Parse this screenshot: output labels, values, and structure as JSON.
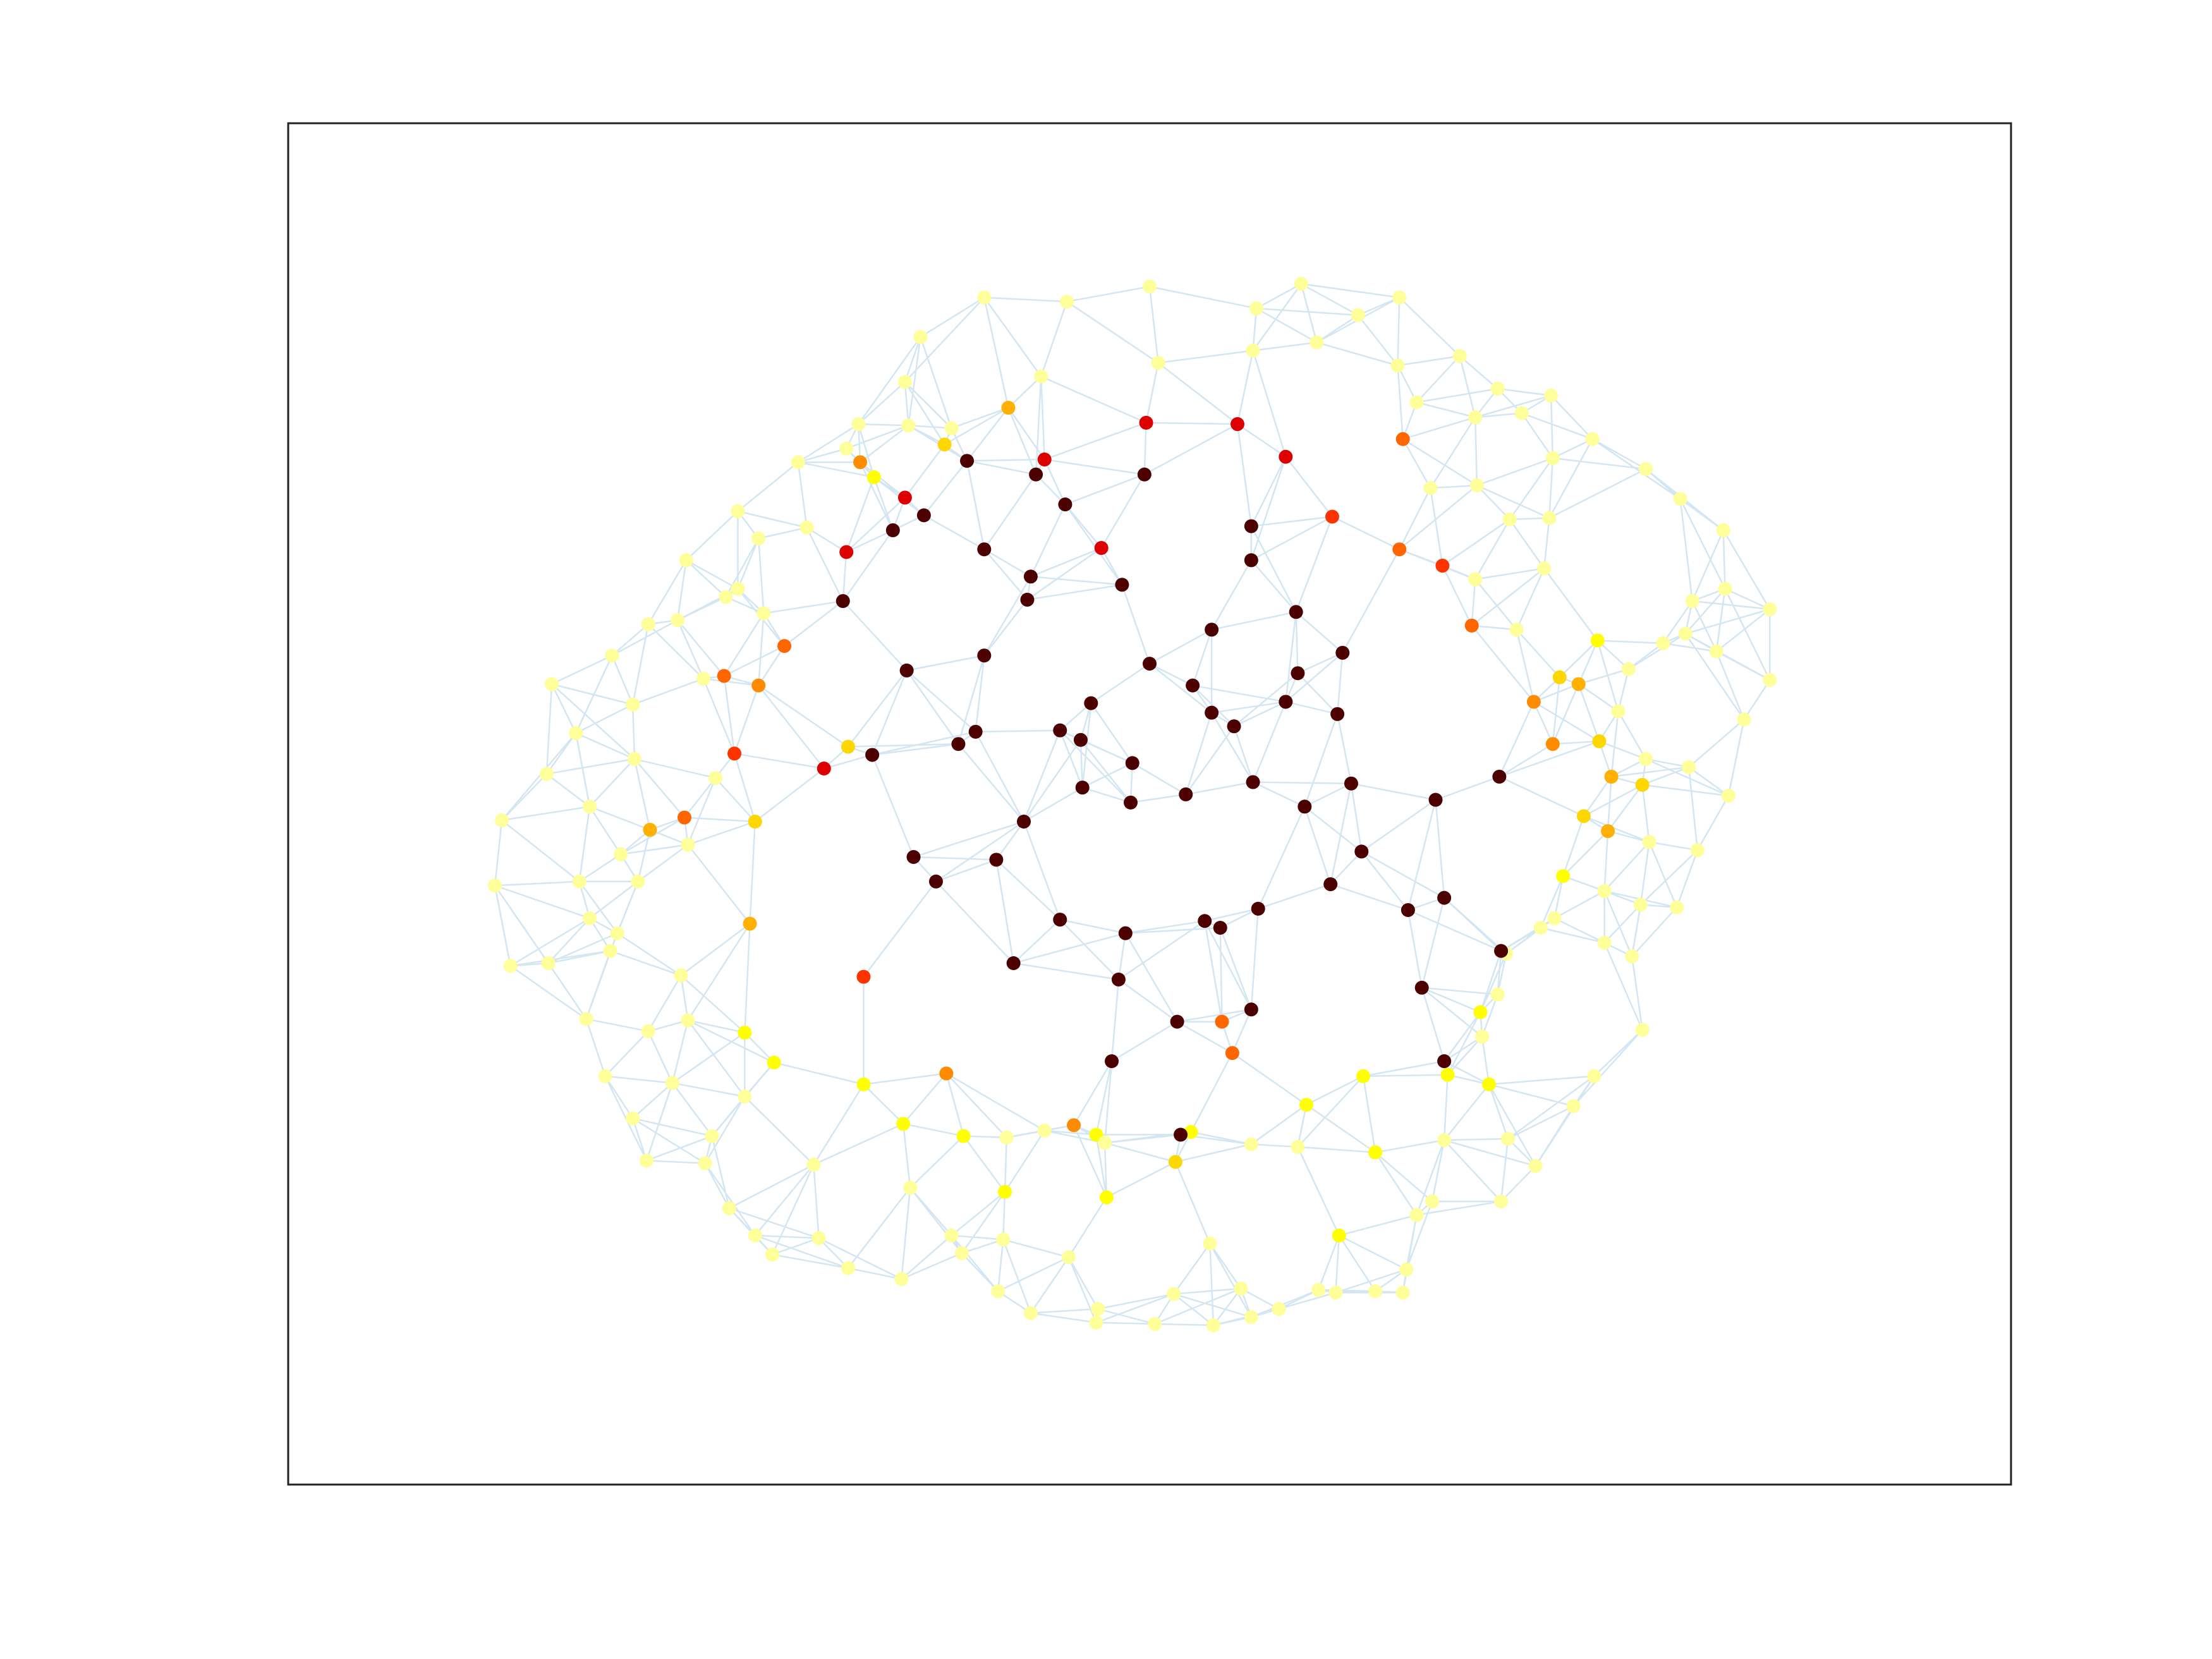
{
  "figure": {
    "edge_color": "#d3e6f2",
    "frame_color": "#222222",
    "background": "#ffffff"
  },
  "chart_data": {
    "type": "network-graph",
    "grid": false,
    "axes_ticks": false,
    "xlim": [
      0,
      1
    ],
    "ylim": [
      0,
      1
    ],
    "colormap": "hot",
    "palette": [
      "#3a0000",
      "#4d0000",
      "#7a0000",
      "#dd0000",
      "#ff3300",
      "#ff6600",
      "#ff8c00",
      "#ffb000",
      "#ffd700",
      "#ffff00",
      "#ffff99"
    ],
    "nodes": [
      [
        0.431,
        0.874,
        10
      ],
      [
        0.469,
        0.881,
        10
      ],
      [
        0.503,
        0.882,
        10
      ],
      [
        0.537,
        0.883,
        10
      ],
      [
        0.559,
        0.877,
        10
      ],
      [
        0.575,
        0.871,
        10
      ],
      [
        0.608,
        0.859,
        10
      ],
      [
        0.631,
        0.858,
        10
      ],
      [
        0.647,
        0.859,
        10
      ],
      [
        0.649,
        0.842,
        10
      ],
      [
        0.47,
        0.871,
        10
      ],
      [
        0.514,
        0.86,
        10
      ],
      [
        0.553,
        0.856,
        10
      ],
      [
        0.598,
        0.857,
        10
      ],
      [
        0.61,
        0.817,
        9
      ],
      [
        0.655,
        0.802,
        10
      ],
      [
        0.704,
        0.792,
        10
      ],
      [
        0.708,
        0.746,
        10
      ],
      [
        0.664,
        0.792,
        10
      ],
      [
        0.724,
        0.766,
        10
      ],
      [
        0.746,
        0.722,
        10
      ],
      [
        0.758,
        0.7,
        10
      ],
      [
        0.786,
        0.666,
        10
      ],
      [
        0.78,
        0.612,
        10
      ],
      [
        0.764,
        0.602,
        10
      ],
      [
        0.785,
        0.574,
        10
      ],
      [
        0.806,
        0.576,
        10
      ],
      [
        0.818,
        0.534,
        10
      ],
      [
        0.836,
        0.494,
        10
      ],
      [
        0.845,
        0.438,
        10
      ],
      [
        0.86,
        0.409,
        10
      ],
      [
        0.86,
        0.357,
        10
      ],
      [
        0.834,
        0.342,
        10
      ],
      [
        0.811,
        0.375,
        10
      ],
      [
        0.833,
        0.299,
        10
      ],
      [
        0.808,
        0.276,
        10
      ],
      [
        0.788,
        0.254,
        10
      ],
      [
        0.757,
        0.232,
        10
      ],
      [
        0.733,
        0.2,
        10
      ],
      [
        0.702,
        0.195,
        10
      ],
      [
        0.68,
        0.171,
        10
      ],
      [
        0.645,
        0.128,
        10
      ],
      [
        0.621,
        0.141,
        10
      ],
      [
        0.588,
        0.118,
        10
      ],
      [
        0.562,
        0.136,
        10
      ],
      [
        0.5,
        0.12,
        10
      ],
      [
        0.452,
        0.131,
        10
      ],
      [
        0.404,
        0.128,
        10
      ],
      [
        0.367,
        0.157,
        10
      ],
      [
        0.331,
        0.221,
        10
      ],
      [
        0.296,
        0.249,
        10
      ],
      [
        0.261,
        0.285,
        10
      ],
      [
        0.231,
        0.321,
        10
      ],
      [
        0.209,
        0.368,
        10
      ],
      [
        0.188,
        0.391,
        10
      ],
      [
        0.153,
        0.412,
        10
      ],
      [
        0.15,
        0.478,
        10
      ],
      [
        0.124,
        0.512,
        10
      ],
      [
        0.12,
        0.56,
        10
      ],
      [
        0.129,
        0.619,
        10
      ],
      [
        0.151,
        0.617,
        10
      ],
      [
        0.173,
        0.658,
        10
      ],
      [
        0.184,
        0.7,
        10
      ],
      [
        0.2,
        0.731,
        10
      ],
      [
        0.208,
        0.762,
        10
      ],
      [
        0.242,
        0.764,
        10
      ],
      [
        0.256,
        0.797,
        10
      ],
      [
        0.271,
        0.817,
        10
      ],
      [
        0.281,
        0.831,
        10
      ],
      [
        0.308,
        0.819,
        10
      ],
      [
        0.325,
        0.841,
        10
      ],
      [
        0.356,
        0.849,
        10
      ],
      [
        0.391,
        0.83,
        10
      ],
      [
        0.412,
        0.858,
        10
      ],
      [
        0.415,
        0.82,
        10
      ],
      [
        0.385,
        0.817,
        10
      ],
      [
        0.453,
        0.833,
        10
      ],
      [
        0.535,
        0.823,
        10
      ],
      [
        0.475,
        0.789,
        9
      ],
      [
        0.515,
        0.763,
        8
      ],
      [
        0.469,
        0.743,
        9
      ],
      [
        0.416,
        0.785,
        9
      ],
      [
        0.392,
        0.744,
        9
      ],
      [
        0.357,
        0.735,
        9
      ],
      [
        0.334,
        0.706,
        9
      ],
      [
        0.282,
        0.69,
        9
      ],
      [
        0.265,
        0.668,
        9
      ],
      [
        0.232,
        0.659,
        10
      ],
      [
        0.228,
        0.626,
        10
      ],
      [
        0.187,
        0.608,
        10
      ],
      [
        0.169,
        0.557,
        10
      ],
      [
        0.175,
        0.502,
        10
      ],
      [
        0.167,
        0.448,
        10
      ],
      [
        0.2,
        0.427,
        10
      ],
      [
        0.241,
        0.408,
        10
      ],
      [
        0.226,
        0.365,
        10
      ],
      [
        0.254,
        0.348,
        10
      ],
      [
        0.276,
        0.36,
        10
      ],
      [
        0.325,
        0.458,
        8
      ],
      [
        0.271,
        0.513,
        8
      ],
      [
        0.268,
        0.588,
        7
      ],
      [
        0.334,
        0.627,
        4
      ],
      [
        0.382,
        0.698,
        6
      ],
      [
        0.456,
        0.736,
        6
      ],
      [
        0.548,
        0.683,
        5
      ],
      [
        0.524,
        0.741,
        9
      ],
      [
        0.586,
        0.752,
        10
      ],
      [
        0.631,
        0.756,
        9
      ],
      [
        0.673,
        0.699,
        9
      ],
      [
        0.692,
        0.653,
        9
      ],
      [
        0.707,
        0.61,
        10
      ],
      [
        0.727,
        0.591,
        10
      ],
      [
        0.74,
        0.553,
        9
      ],
      [
        0.752,
        0.509,
        8
      ],
      [
        0.761,
        0.454,
        8
      ],
      [
        0.738,
        0.407,
        8
      ],
      [
        0.76,
        0.38,
        9
      ],
      [
        0.713,
        0.372,
        10
      ],
      [
        0.689,
        0.335,
        10
      ],
      [
        0.729,
        0.327,
        10
      ],
      [
        0.709,
        0.291,
        10
      ],
      [
        0.69,
        0.266,
        10
      ],
      [
        0.732,
        0.29,
        10
      ],
      [
        0.734,
        0.246,
        10
      ],
      [
        0.716,
        0.213,
        10
      ],
      [
        0.689,
        0.216,
        10
      ],
      [
        0.663,
        0.268,
        10
      ],
      [
        0.655,
        0.205,
        10
      ],
      [
        0.644,
        0.178,
        10
      ],
      [
        0.597,
        0.161,
        10
      ],
      [
        0.56,
        0.167,
        10
      ],
      [
        0.505,
        0.176,
        10
      ],
      [
        0.437,
        0.186,
        10
      ],
      [
        0.385,
        0.224,
        10
      ],
      [
        0.36,
        0.222,
        10
      ],
      [
        0.358,
        0.19,
        10
      ],
      [
        0.34,
        0.26,
        9
      ],
      [
        0.324,
        0.239,
        10
      ],
      [
        0.301,
        0.297,
        10
      ],
      [
        0.273,
        0.305,
        10
      ],
      [
        0.261,
        0.342,
        10
      ],
      [
        0.193,
        0.537,
        10
      ],
      [
        0.191,
        0.595,
        10
      ],
      [
        0.248,
        0.481,
        10
      ],
      [
        0.232,
        0.53,
        10
      ],
      [
        0.201,
        0.467,
        10
      ],
      [
        0.175,
        0.584,
        10
      ],
      [
        0.203,
        0.557,
        10
      ],
      [
        0.209,
        0.667,
        10
      ],
      [
        0.223,
        0.705,
        10
      ],
      [
        0.265,
        0.715,
        10
      ],
      [
        0.246,
        0.744,
        10
      ],
      [
        0.305,
        0.765,
        10
      ],
      [
        0.361,
        0.782,
        10
      ],
      [
        0.417,
        0.745,
        10
      ],
      [
        0.439,
        0.74,
        10
      ],
      [
        0.474,
        0.749,
        10
      ],
      [
        0.559,
        0.75,
        10
      ],
      [
        0.591,
        0.721,
        9
      ],
      [
        0.624,
        0.7,
        9
      ],
      [
        0.671,
        0.747,
        10
      ],
      [
        0.697,
        0.706,
        9
      ],
      [
        0.693,
        0.671,
        10
      ],
      [
        0.702,
        0.64,
        10
      ],
      [
        0.735,
        0.584,
        10
      ],
      [
        0.764,
        0.564,
        10
      ],
      [
        0.79,
        0.528,
        10
      ],
      [
        0.813,
        0.473,
        10
      ],
      [
        0.788,
        0.467,
        10
      ],
      [
        0.772,
        0.432,
        10
      ],
      [
        0.778,
        0.401,
        10
      ],
      [
        0.798,
        0.382,
        10
      ],
      [
        0.815,
        0.351,
        10
      ],
      [
        0.829,
        0.388,
        10
      ],
      [
        0.429,
        0.35,
        1
      ],
      [
        0.472,
        0.312,
        3
      ],
      [
        0.431,
        0.333,
        1
      ],
      [
        0.484,
        0.339,
        1
      ],
      [
        0.536,
        0.372,
        1
      ],
      [
        0.586,
        0.404,
        1
      ],
      [
        0.559,
        0.321,
        1
      ],
      [
        0.5,
        0.397,
        1
      ],
      [
        0.466,
        0.426,
        1
      ],
      [
        0.404,
        0.391,
        1
      ],
      [
        0.359,
        0.402,
        1
      ],
      [
        0.399,
        0.447,
        1
      ],
      [
        0.339,
        0.464,
        1
      ],
      [
        0.311,
        0.474,
        3
      ],
      [
        0.363,
        0.539,
        1
      ],
      [
        0.427,
        0.513,
        1
      ],
      [
        0.461,
        0.488,
        1
      ],
      [
        0.389,
        0.456,
        1
      ],
      [
        0.411,
        0.541,
        1
      ],
      [
        0.376,
        0.557,
        1
      ],
      [
        0.421,
        0.617,
        1
      ],
      [
        0.448,
        0.585,
        1
      ],
      [
        0.486,
        0.595,
        1
      ],
      [
        0.541,
        0.591,
        1
      ],
      [
        0.532,
        0.586,
        1
      ],
      [
        0.559,
        0.651,
        1
      ],
      [
        0.516,
        0.66,
        1
      ],
      [
        0.478,
        0.689,
        1
      ],
      [
        0.482,
        0.629,
        1
      ],
      [
        0.518,
        0.743,
        1
      ],
      [
        0.563,
        0.577,
        1
      ],
      [
        0.605,
        0.559,
        1
      ],
      [
        0.65,
        0.578,
        1
      ],
      [
        0.671,
        0.569,
        1
      ],
      [
        0.623,
        0.535,
        1
      ],
      [
        0.59,
        0.502,
        1
      ],
      [
        0.56,
        0.484,
        1
      ],
      [
        0.521,
        0.493,
        1
      ],
      [
        0.525,
        0.413,
        1
      ],
      [
        0.549,
        0.443,
        1
      ],
      [
        0.49,
        0.47,
        1
      ],
      [
        0.46,
        0.453,
        1
      ],
      [
        0.489,
        0.499,
        1
      ],
      [
        0.536,
        0.433,
        1
      ],
      [
        0.579,
        0.425,
        1
      ],
      [
        0.585,
        0.359,
        1
      ],
      [
        0.612,
        0.389,
        1
      ],
      [
        0.617,
        0.485,
        1
      ],
      [
        0.666,
        0.497,
        1
      ],
      [
        0.704,
        0.608,
        1
      ],
      [
        0.671,
        0.689,
        1
      ],
      [
        0.658,
        0.635,
        1
      ],
      [
        0.703,
        0.48,
        1
      ],
      [
        0.609,
        0.434,
        1
      ],
      [
        0.559,
        0.296,
        1
      ],
      [
        0.497,
        0.258,
        1
      ],
      [
        0.451,
        0.28,
        1
      ],
      [
        0.369,
        0.288,
        1
      ],
      [
        0.394,
        0.248,
        1
      ],
      [
        0.434,
        0.258,
        1
      ],
      [
        0.404,
        0.313,
        1
      ],
      [
        0.351,
        0.299,
        1
      ],
      [
        0.322,
        0.351,
        1
      ],
      [
        0.448,
        0.446,
        1
      ],
      [
        0.542,
        0.66,
        5
      ],
      [
        0.67,
        0.325,
        4
      ],
      [
        0.647,
        0.232,
        5
      ],
      [
        0.606,
        0.289,
        4
      ],
      [
        0.579,
        0.245,
        3
      ],
      [
        0.439,
        0.247,
        3
      ],
      [
        0.358,
        0.275,
        3
      ],
      [
        0.324,
        0.315,
        3
      ],
      [
        0.273,
        0.413,
        6
      ],
      [
        0.259,
        0.463,
        4
      ],
      [
        0.253,
        0.406,
        5
      ],
      [
        0.23,
        0.51,
        5
      ],
      [
        0.21,
        0.519,
        7
      ],
      [
        0.288,
        0.384,
        5
      ],
      [
        0.332,
        0.249,
        6
      ],
      [
        0.381,
        0.236,
        8
      ],
      [
        0.418,
        0.209,
        7
      ],
      [
        0.498,
        0.22,
        3
      ],
      [
        0.551,
        0.221,
        3
      ],
      [
        0.645,
        0.313,
        5
      ],
      [
        0.687,
        0.369,
        5
      ],
      [
        0.723,
        0.425,
        6
      ],
      [
        0.766,
        0.52,
        7
      ],
      [
        0.768,
        0.48,
        7
      ],
      [
        0.734,
        0.456,
        6
      ],
      [
        0.749,
        0.412,
        7
      ],
      [
        0.786,
        0.486,
        8
      ]
    ]
  }
}
